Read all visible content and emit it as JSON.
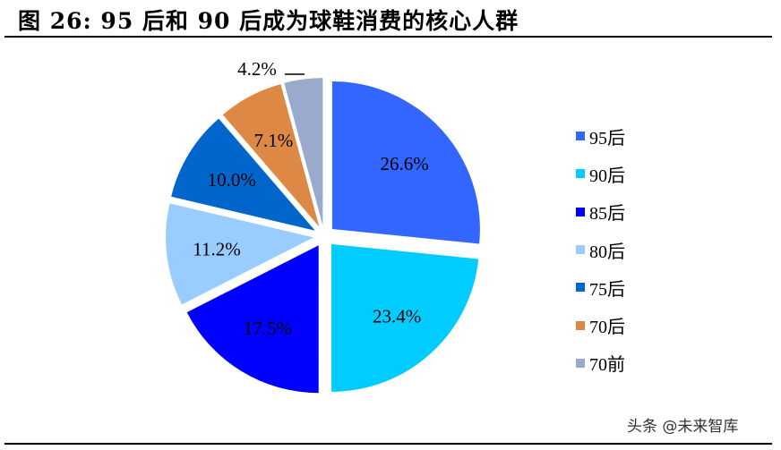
{
  "header": {
    "title": "图 26:  95 后和 90 后成为球鞋消费的核心人群"
  },
  "watermark": "头条 @未来智库",
  "chart_data": {
    "type": "pie",
    "title": "图 26: 95 后和 90 后成为球鞋消费的核心人群",
    "exploded": true,
    "start_angle": "12 o'clock, clockwise",
    "legend_position": "right",
    "categories": [
      "95后",
      "90后",
      "85后",
      "80后",
      "75后",
      "70后",
      "70前"
    ],
    "values": [
      26.6,
      23.4,
      17.5,
      11.2,
      10.0,
      7.1,
      4.2
    ],
    "labels": [
      "26.6%",
      "23.4%",
      "17.5%",
      "11.2%",
      "10.0%",
      "7.1%",
      "4.2%"
    ],
    "colors": [
      "#3366FF",
      "#00CCFF",
      "#0000FF",
      "#99CCFF",
      "#0066CC",
      "#DD8844",
      "#99AACC"
    ]
  },
  "legend": {
    "items": [
      {
        "label": "95后",
        "color": "#3366FF"
      },
      {
        "label": "90后",
        "color": "#00CCFF"
      },
      {
        "label": "85后",
        "color": "#0000FF"
      },
      {
        "label": "80后",
        "color": "#99CCFF"
      },
      {
        "label": "75后",
        "color": "#0066CC"
      },
      {
        "label": "70后",
        "color": "#DD8844"
      },
      {
        "label": "70前",
        "color": "#99AACC"
      }
    ]
  }
}
